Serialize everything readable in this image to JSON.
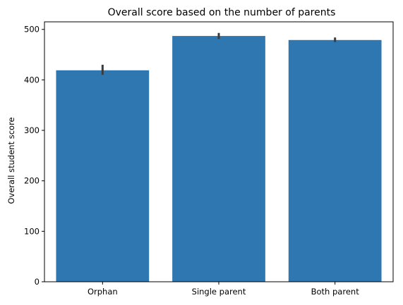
{
  "chart_data": {
    "type": "bar",
    "title": "Overall score based on the number of parents",
    "xlabel": "",
    "ylabel": "Overall student score",
    "categories": [
      "Orphan",
      "Single parent",
      "Both parent"
    ],
    "values": [
      419,
      487,
      479
    ],
    "error_bars": [
      [
        410,
        430
      ],
      [
        481,
        493
      ],
      [
        475,
        484
      ]
    ],
    "ylim": [
      0,
      515
    ],
    "yticks": [
      0,
      100,
      200,
      300,
      400,
      500
    ],
    "grid": false,
    "bar_color": "#2f77b0",
    "error_color": "#3c3c3c"
  }
}
